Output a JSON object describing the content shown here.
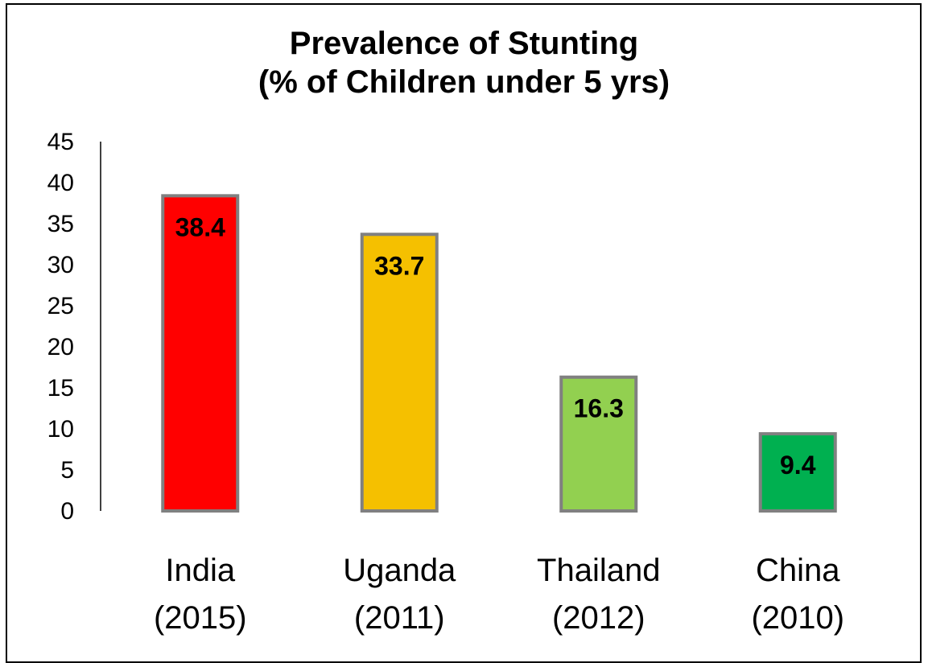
{
  "chart_data": {
    "type": "bar",
    "title_lines": [
      "Prevalence of Stunting",
      "(% of Children under 5 yrs)"
    ],
    "categories": [
      [
        "India",
        "(2015)"
      ],
      [
        "Uganda",
        "(2011)"
      ],
      [
        "Thailand",
        "(2012)"
      ],
      [
        "China",
        "(2010)"
      ]
    ],
    "values": [
      38.4,
      33.7,
      16.3,
      9.4
    ],
    "bar_colors": [
      "#ff0000",
      "#f5c000",
      "#92d050",
      "#00b050"
    ],
    "bar_border_color": "#808080",
    "ylim": [
      0,
      45
    ],
    "yticks": [
      0,
      5,
      10,
      15,
      20,
      25,
      30,
      35,
      40,
      45
    ],
    "grid": false,
    "xlabel": "",
    "ylabel": ""
  }
}
